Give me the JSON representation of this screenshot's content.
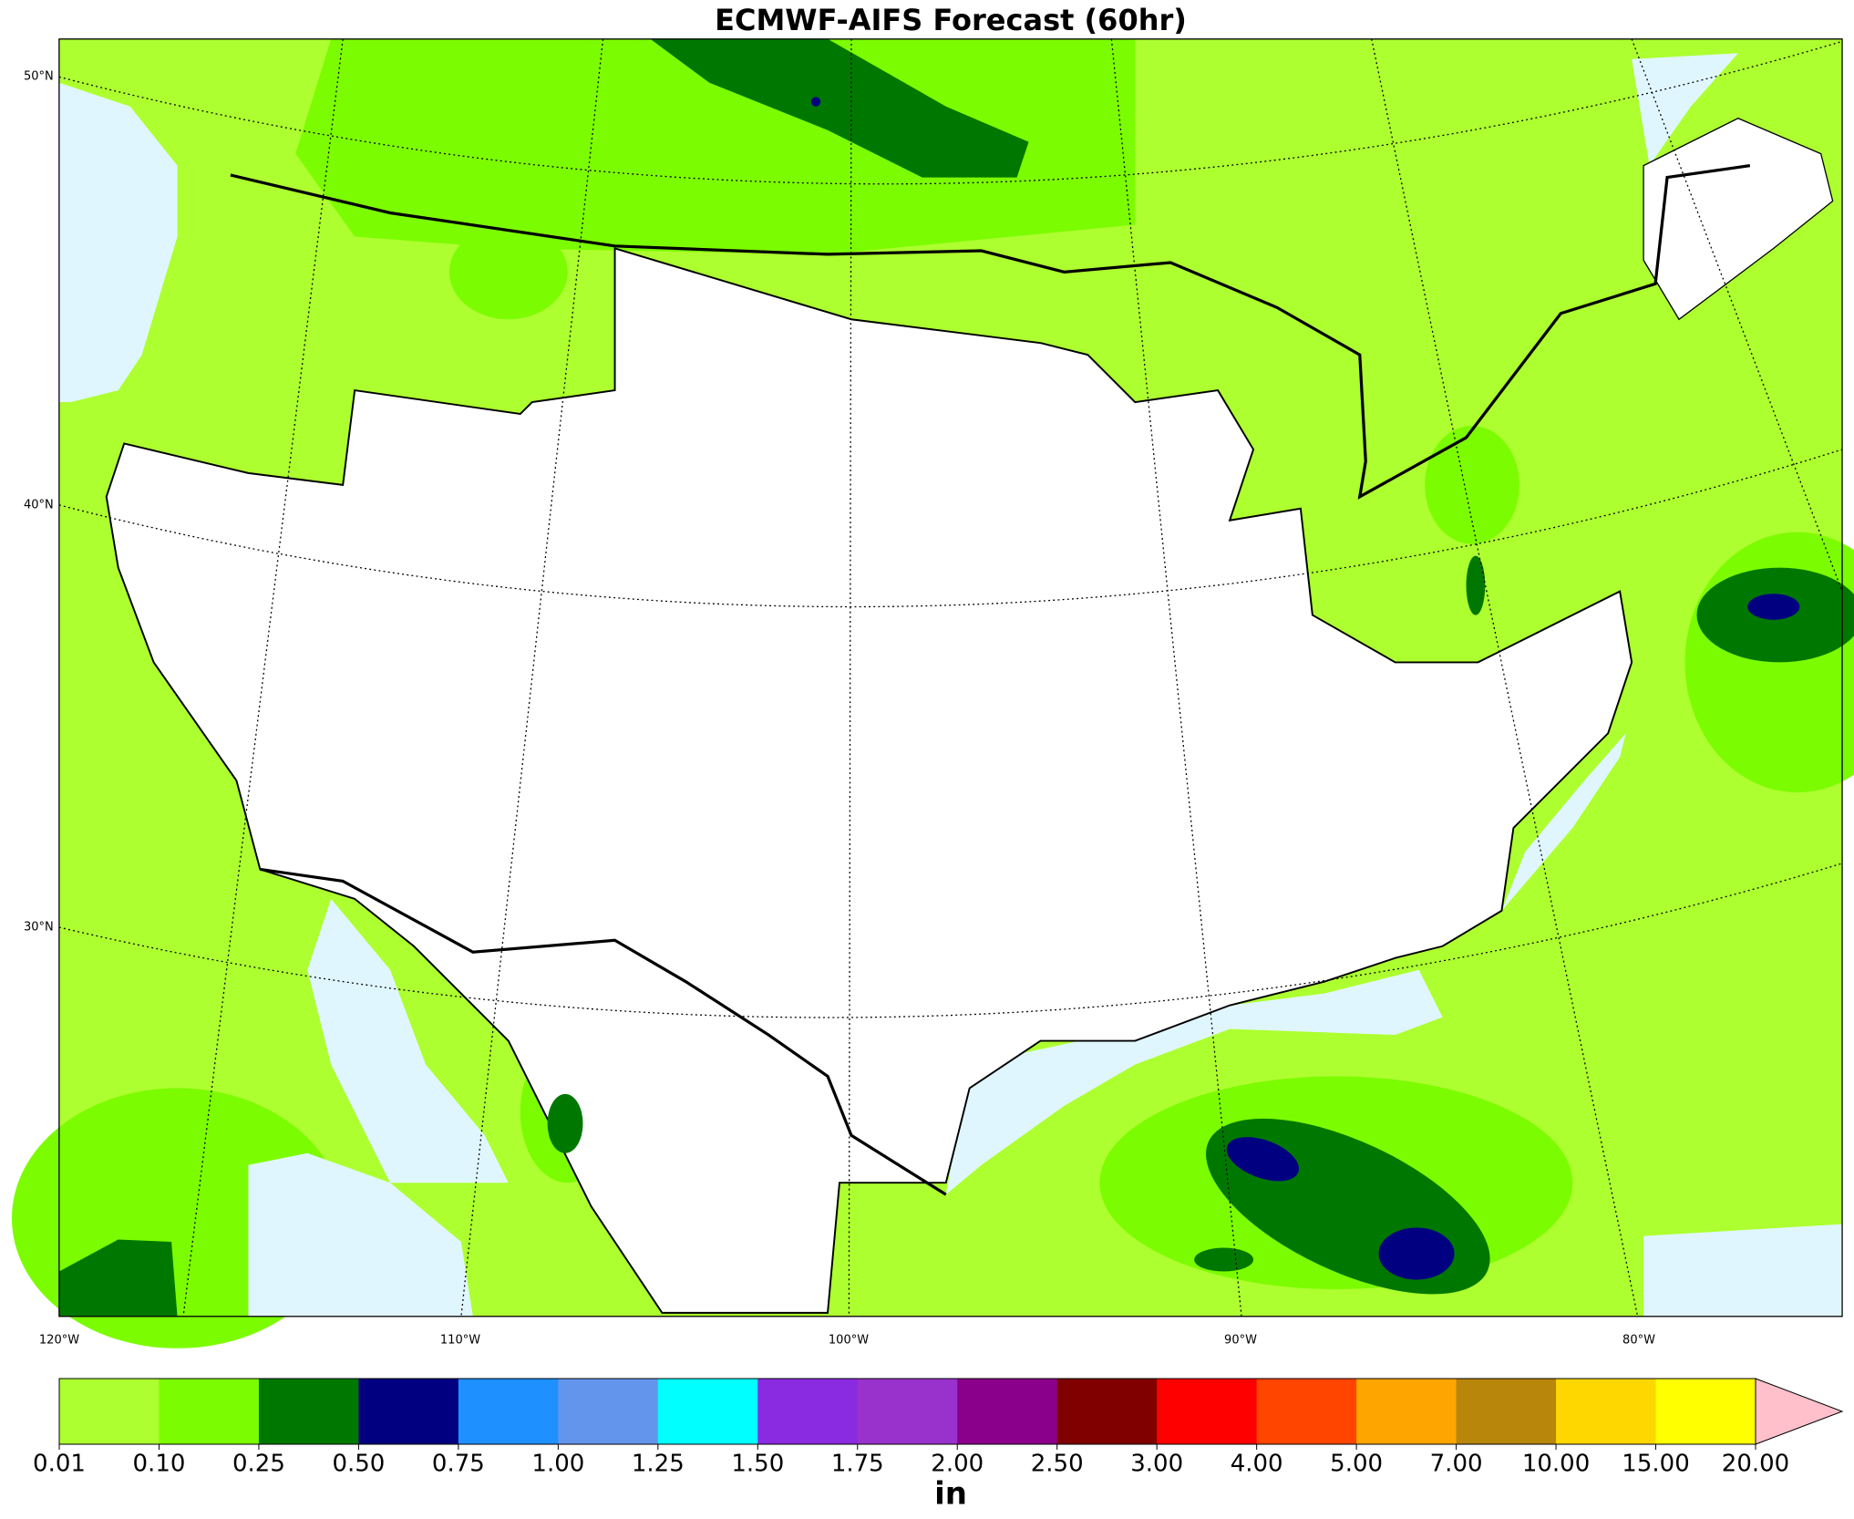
{
  "title": "ECMWF-AIFS Forecast (60hr)",
  "map": {
    "lat_labels": [
      "50°N",
      "40°N",
      "30°N"
    ],
    "lon_labels": [
      "120°W",
      "110°W",
      "100°W",
      "90°W",
      "80°W"
    ]
  },
  "colorbar": {
    "levels": [
      {
        "value": 0.01,
        "label": "0.01"
      },
      {
        "value": 0.1,
        "label": "0.10"
      },
      {
        "value": 0.25,
        "label": "0.25"
      },
      {
        "value": 0.5,
        "label": "0.50"
      },
      {
        "value": 0.75,
        "label": "0.75"
      },
      {
        "value": 1,
        "label": "1.00"
      },
      {
        "value": 1.25,
        "label": "1.25"
      },
      {
        "value": 1.5,
        "label": "1.50"
      },
      {
        "value": 1.75,
        "label": "1.75"
      },
      {
        "value": 2,
        "label": "2.00"
      },
      {
        "value": 2.5,
        "label": "2.50"
      },
      {
        "value": 3,
        "label": "3.00"
      },
      {
        "value": 4,
        "label": "4.00"
      },
      {
        "value": 5,
        "label": "5.00"
      },
      {
        "value": 7,
        "label": "7.00"
      },
      {
        "value": 10,
        "label": "10.00"
      },
      {
        "value": 15,
        "label": "15.00"
      },
      {
        "value": 20,
        "label": "20.00"
      }
    ],
    "colors": [
      "#adff2f",
      "#7cfc00",
      "#007800",
      "#000080",
      "#1e90ff",
      "#6495ed",
      "#00ffff",
      "#8a2be2",
      "#9932cc",
      "#8b008b",
      "#800000",
      "#ff0000",
      "#ff4500",
      "#ffa500",
      "#b8860b",
      "#ffd700",
      "#ffff00"
    ],
    "extend_color": "#ffc0cb",
    "unit": "in"
  }
}
